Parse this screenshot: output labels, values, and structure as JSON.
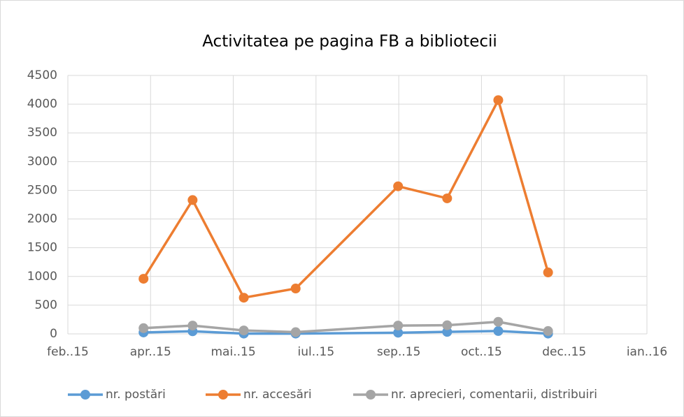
{
  "chart_data": {
    "type": "line",
    "title": "Activitatea pe pagina FB a bibliotecii",
    "x": [
      0.915,
      1.508,
      2.127,
      2.754,
      3.992,
      4.585,
      5.203,
      5.805
    ],
    "series": [
      {
        "name": "nr. postări",
        "color": "#5b9bd5",
        "values": [
          25,
          45,
          5,
          5,
          20,
          35,
          50,
          5
        ]
      },
      {
        "name": "nr. accesări",
        "color": "#ed7d31",
        "values": [
          960,
          2330,
          630,
          790,
          2570,
          2360,
          4070,
          1070
        ]
      },
      {
        "name": "nr. aprecieri, comentarii, distribuiri",
        "color": "#a5a5a5",
        "values": [
          100,
          145,
          60,
          30,
          145,
          150,
          210,
          50
        ]
      }
    ],
    "xlim": [
      0,
      7
    ],
    "xticks": [
      {
        "value": 0,
        "label": "feb..15"
      },
      {
        "value": 1,
        "label": "apr..15"
      },
      {
        "value": 2,
        "label": "mai..15"
      },
      {
        "value": 3,
        "label": "iul..15"
      },
      {
        "value": 4,
        "label": "sep..15"
      },
      {
        "value": 5,
        "label": "oct..15"
      },
      {
        "value": 6,
        "label": "dec..15"
      },
      {
        "value": 7,
        "label": "ian..16"
      }
    ],
    "ylim": [
      0,
      4500
    ],
    "yticks": [
      0,
      500,
      1000,
      1500,
      2000,
      2500,
      3000,
      3500,
      4000,
      4500
    ],
    "grid": true,
    "legend": "bottom"
  }
}
